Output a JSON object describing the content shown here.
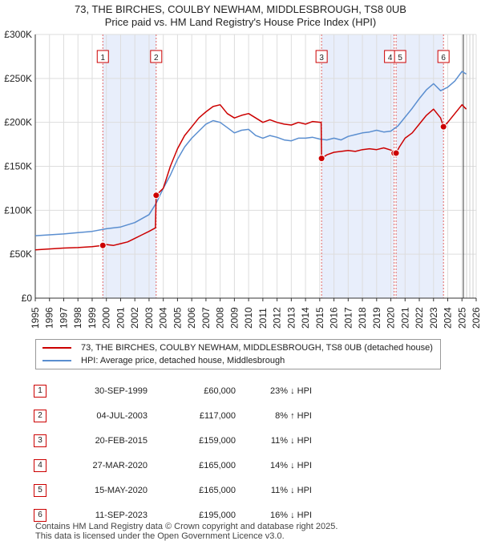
{
  "header": {
    "title_line1": "73, THE BIRCHES, COULBY NEWHAM, MIDDLESBROUGH, TS8 0UB",
    "title_line2": "Price paid vs. HM Land Registry's House Price Index (HPI)"
  },
  "legend": {
    "property_label": "73, THE BIRCHES, COULBY NEWHAM, MIDDLESBROUGH, TS8 0UB (detached house)",
    "hpi_label": "HPI: Average price, detached house, Middlesbrough"
  },
  "colors": {
    "property": "#cc0000",
    "hpi": "#5a8ed0",
    "shade": "#e8eefb",
    "grid": "#dddddd"
  },
  "sales": [
    {
      "num": "1",
      "date": "30-SEP-1999",
      "price": "£60,000",
      "pct": "23% ↓ HPI"
    },
    {
      "num": "2",
      "date": "04-JUL-2003",
      "price": "£117,000",
      "pct": "8% ↑ HPI"
    },
    {
      "num": "3",
      "date": "20-FEB-2015",
      "price": "£159,000",
      "pct": "11% ↓ HPI"
    },
    {
      "num": "4",
      "date": "27-MAR-2020",
      "price": "£165,000",
      "pct": "14% ↓ HPI"
    },
    {
      "num": "5",
      "date": "15-MAY-2020",
      "price": "£165,000",
      "pct": "11% ↓ HPI"
    },
    {
      "num": "6",
      "date": "11-SEP-2023",
      "price": "£195,000",
      "pct": "16% ↓ HPI"
    }
  ],
  "footer": {
    "line1": "Contains HM Land Registry data © Crown copyright and database right 2025.",
    "line2": "This data is licensed under the Open Government Licence v3.0."
  },
  "chart_data": {
    "type": "line",
    "title": "Price paid vs. HM Land Registry's House Price Index (HPI)",
    "xlabel": "",
    "ylabel": "",
    "xlim": [
      1995,
      2026
    ],
    "ylim": [
      0,
      300000
    ],
    "y_ticks": [
      0,
      50000,
      100000,
      150000,
      200000,
      250000,
      300000
    ],
    "y_tick_labels": [
      "£0",
      "£50K",
      "£100K",
      "£150K",
      "£200K",
      "£250K",
      "£300K"
    ],
    "x_ticks": [
      1995,
      1996,
      1997,
      1998,
      1999,
      2000,
      2001,
      2002,
      2003,
      2004,
      2005,
      2006,
      2007,
      2008,
      2009,
      2010,
      2011,
      2012,
      2013,
      2014,
      2015,
      2016,
      2017,
      2018,
      2019,
      2020,
      2021,
      2022,
      2023,
      2024,
      2025,
      2026
    ],
    "forecast_start": 2025.1,
    "shaded_periods": [
      [
        1999.75,
        2003.5
      ],
      [
        2015.13,
        2020.23
      ],
      [
        2020.37,
        2023.7
      ]
    ],
    "sale_points": [
      {
        "label": "1",
        "x": 1999.75,
        "y": 60000
      },
      {
        "label": "2",
        "x": 2003.5,
        "y": 117000
      },
      {
        "label": "3",
        "x": 2015.13,
        "y": 159000
      },
      {
        "label": "4",
        "x": 2020.23,
        "y": 165000
      },
      {
        "label": "5",
        "x": 2020.37,
        "y": 165000
      },
      {
        "label": "6",
        "x": 2023.7,
        "y": 195000
      }
    ],
    "series": [
      {
        "name": "73, THE BIRCHES, COULBY NEWHAM, MIDDLESBROUGH, TS8 0UB (detached house)",
        "x": [
          1995,
          1996,
          1997,
          1998,
          1999,
          1999.75,
          2000,
          2000.5,
          2001,
          2001.5,
          2002,
          2002.5,
          2003,
          2003.45,
          2003.5,
          2004,
          2004.5,
          2005,
          2005.5,
          2006,
          2006.5,
          2007,
          2007.5,
          2008,
          2008.5,
          2009,
          2009.5,
          2010,
          2010.5,
          2011,
          2011.5,
          2012,
          2012.5,
          2013,
          2013.5,
          2014,
          2014.5,
          2015.1,
          2015.13,
          2015.5,
          2016,
          2016.5,
          2017,
          2017.5,
          2018,
          2018.5,
          2019,
          2019.5,
          2020.1,
          2020.23,
          2020.37,
          2020.6,
          2021,
          2021.5,
          2022,
          2022.5,
          2023,
          2023.5,
          2023.7,
          2024,
          2024.5,
          2025,
          2025.3
        ],
        "y": [
          55000,
          56000,
          57000,
          57500,
          58500,
          60000,
          61000,
          60000,
          62000,
          64000,
          68000,
          72000,
          76000,
          80000,
          117000,
          125000,
          150000,
          170000,
          185000,
          195000,
          205000,
          212000,
          218000,
          220000,
          210000,
          205000,
          208000,
          210000,
          205000,
          200000,
          203000,
          200000,
          198000,
          197000,
          200000,
          198000,
          201000,
          200000,
          159000,
          163000,
          166000,
          167000,
          168000,
          167000,
          169000,
          170000,
          169000,
          171000,
          168000,
          165000,
          165000,
          172000,
          182000,
          188000,
          198000,
          208000,
          215000,
          205000,
          195000,
          200000,
          210000,
          220000,
          215000
        ]
      },
      {
        "name": "HPI: Average price, detached house, Middlesbrough",
        "x": [
          1995,
          1996,
          1997,
          1998,
          1999,
          2000,
          2001,
          2002,
          2003,
          2003.5,
          2004,
          2004.5,
          2005,
          2005.5,
          2006,
          2006.5,
          2007,
          2007.5,
          2008,
          2008.5,
          2009,
          2009.5,
          2010,
          2010.5,
          2011,
          2011.5,
          2012,
          2012.5,
          2013,
          2013.5,
          2014,
          2014.5,
          2015,
          2015.5,
          2016,
          2016.5,
          2017,
          2017.5,
          2018,
          2018.5,
          2019,
          2019.5,
          2020,
          2020.5,
          2021,
          2021.5,
          2022,
          2022.5,
          2023,
          2023.5,
          2024,
          2024.5,
          2025,
          2025.3
        ],
        "y": [
          71000,
          72000,
          73000,
          74500,
          76000,
          79000,
          81000,
          86000,
          95000,
          108000,
          125000,
          140000,
          158000,
          172000,
          182000,
          190000,
          198000,
          202000,
          200000,
          194000,
          188000,
          191000,
          192000,
          185000,
          182000,
          185000,
          183000,
          180000,
          179000,
          182000,
          182000,
          183000,
          181000,
          180000,
          182000,
          180000,
          184000,
          186000,
          188000,
          189000,
          191000,
          189000,
          190000,
          196000,
          206000,
          216000,
          227000,
          237000,
          244000,
          236000,
          240000,
          247000,
          258000,
          255000
        ]
      }
    ]
  }
}
